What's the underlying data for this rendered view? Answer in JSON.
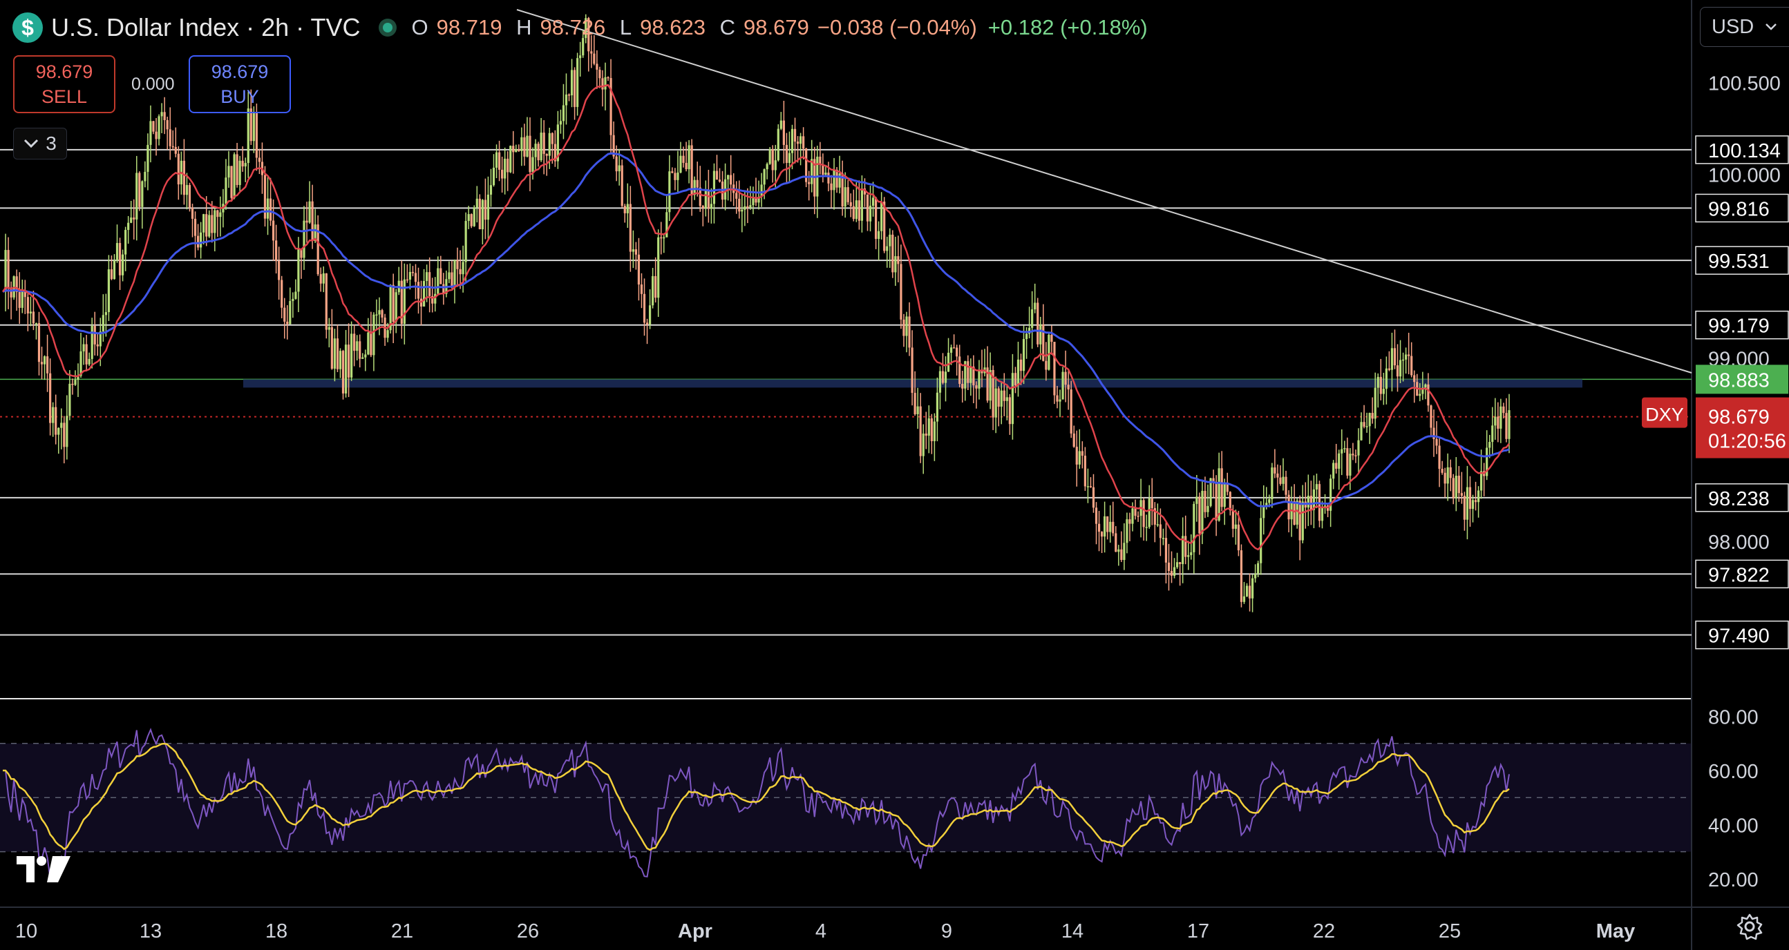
{
  "header": {
    "title": "U.S. Dollar Index · 2h · TVC",
    "symbol_icon": "$",
    "ohlc": {
      "o_label": "O",
      "o": "98.719",
      "h_label": "H",
      "h": "98.726",
      "l_label": "L",
      "l": "98.623",
      "c_label": "C",
      "c": "98.679"
    },
    "change": "−0.038 (−0.04%)",
    "change_extra": "+0.182 (+0.18%)"
  },
  "trade": {
    "sell_price": "98.679",
    "sell_label": "SELL",
    "spread": "0.000",
    "buy_price": "98.679",
    "buy_label": "BUY"
  },
  "indicators_toggle": {
    "count": "3",
    "icon": "chevron-down-icon"
  },
  "currency_select": "USD",
  "chart_data": {
    "type": "candlestick",
    "x_tick_labels": [
      "10",
      "13",
      "18",
      "21",
      "26",
      "Apr",
      "4",
      "9",
      "14",
      "17",
      "22",
      "25",
      "May"
    ],
    "price_axis_labels": [
      "100.500",
      "100.000",
      "99.000",
      "98.000"
    ],
    "price_range": [
      97.15,
      100.95
    ],
    "horizontal_levels": [
      "100.134",
      "99.816",
      "99.531",
      "99.179",
      "98.238",
      "97.822",
      "97.490"
    ],
    "green_level": "98.883",
    "current_price_tag": {
      "symbol": "DXY",
      "price": "98.679",
      "countdown": "01:20:56"
    },
    "rsi_axis_labels": [
      "80.00",
      "60.00",
      "40.00",
      "20.00"
    ],
    "rsi_band": [
      30,
      70
    ],
    "colors": {
      "up": "#b7dd7a",
      "down": "#f7a486",
      "ma_fast": "#e0434b",
      "ma_slow": "#3f55e8",
      "rsi": "#7e57c2",
      "rsi_ma": "#f2d03b",
      "level": "#d9d9d9",
      "green_tag": "#4caf50",
      "price_tag": "#c62828"
    },
    "approx_path": [
      [
        0,
        99.5
      ],
      [
        10,
        99.2
      ],
      [
        15,
        98.95
      ],
      [
        20,
        98.5
      ],
      [
        25,
        98.8
      ],
      [
        35,
        99.2
      ],
      [
        50,
        100.0
      ],
      [
        57,
        100.4
      ],
      [
        60,
        100.2
      ],
      [
        70,
        99.6
      ],
      [
        80,
        99.9
      ],
      [
        90,
        100.3
      ],
      [
        100,
        99.2
      ],
      [
        110,
        99.8
      ],
      [
        120,
        98.9
      ],
      [
        130,
        99.1
      ],
      [
        140,
        99.3
      ],
      [
        160,
        99.4
      ],
      [
        180,
        100.1
      ],
      [
        200,
        100.2
      ],
      [
        210,
        100.8
      ],
      [
        215,
        100.6
      ],
      [
        225,
        99.6
      ],
      [
        232,
        99.2
      ],
      [
        240,
        100.1
      ],
      [
        255,
        99.9
      ],
      [
        270,
        99.8
      ],
      [
        280,
        100.2
      ],
      [
        290,
        100.0
      ],
      [
        300,
        99.9
      ],
      [
        318,
        99.7
      ],
      [
        330,
        98.5
      ],
      [
        340,
        99.0
      ],
      [
        350,
        98.9
      ],
      [
        360,
        98.7
      ],
      [
        370,
        99.2
      ],
      [
        380,
        98.8
      ],
      [
        390,
        98.3
      ],
      [
        400,
        97.9
      ],
      [
        410,
        98.2
      ],
      [
        420,
        97.9
      ],
      [
        430,
        98.2
      ],
      [
        440,
        98.3
      ],
      [
        445,
        97.6
      ],
      [
        455,
        98.3
      ],
      [
        465,
        98.1
      ],
      [
        475,
        98.3
      ],
      [
        485,
        98.5
      ],
      [
        495,
        98.9
      ],
      [
        505,
        99.0
      ],
      [
        515,
        98.5
      ],
      [
        525,
        98.2
      ],
      [
        535,
        98.6
      ],
      [
        540,
        98.68
      ]
    ]
  }
}
